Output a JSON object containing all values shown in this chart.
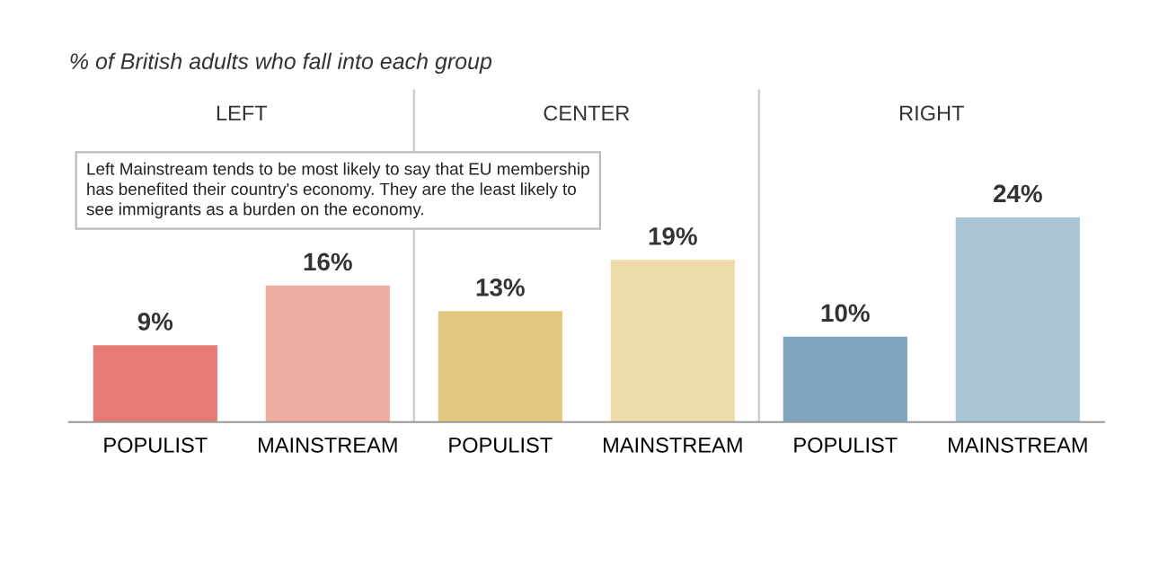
{
  "chart_data": {
    "type": "bar",
    "subtitle": "% of British adults who fall into each group",
    "categories": [
      "POPULIST",
      "MAINSTREAM",
      "POPULIST",
      "MAINSTREAM",
      "POPULIST",
      "MAINSTREAM"
    ],
    "values": [
      9,
      16,
      13,
      19,
      10,
      24
    ],
    "value_labels": [
      "9%",
      "16%",
      "13%",
      "19%",
      "10%",
      "24%"
    ],
    "colors": [
      "#e57b74",
      "#efaca0",
      "#e2c97f",
      "#eddcaa",
      "#7fa5bf",
      "#a9c5d6"
    ],
    "annotations": [
      "LEFT",
      "CENTER",
      "RIGHT",
      "Left Mainstream tends to be most likely to say that EU membership\nhas benefited their country's economy. They are the least likely to\nsee immigrants as a burden on the economy."
    ],
    "grid": false,
    "legend": false
  }
}
